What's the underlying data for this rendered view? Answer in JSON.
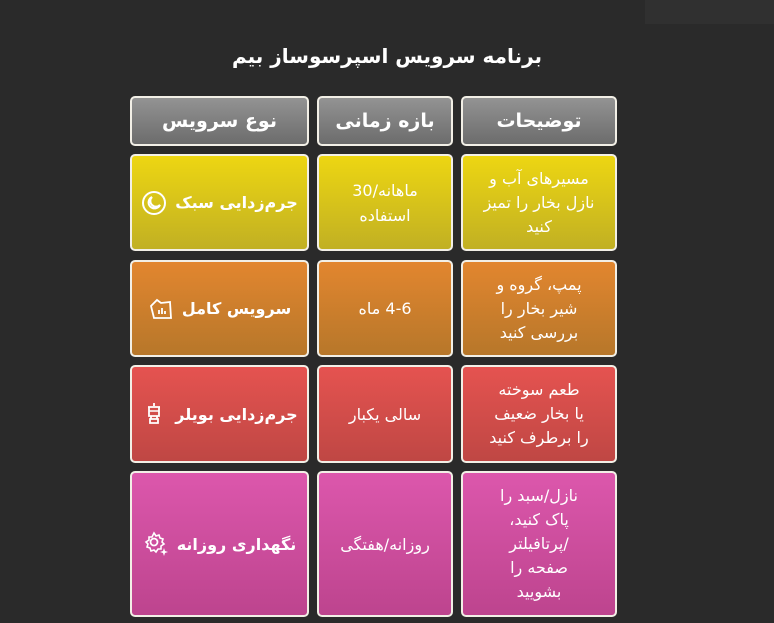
{
  "title": "برنامه سرویس اسپرسوساز بیم",
  "headers": {
    "type": "نوع سرویس",
    "interval": "بازه  زمانی",
    "description": "توضیحات"
  },
  "rows": [
    {
      "type": "جرم‌زدایی سبک",
      "icon": "moon-icon",
      "interval": "ماهانه/30\nاستفاده",
      "description": "مسیرهای آب و\nنازل بخار را تمیز\nکنید",
      "color": "#e0cb15"
    },
    {
      "type": "سرویس کامل",
      "icon": "chart-box-icon",
      "interval": "4-6 ماه",
      "description": "پمپ، گروه و\nشیر بخار را\nبررسی کنید",
      "color": "#d8822e"
    },
    {
      "type": "جرم‌زدایی بویلر",
      "icon": "boiler-icon",
      "interval": "سالی یکبار",
      "description": "طعم سوخته\nیا بخار ضعیف\nرا برطرف کنید",
      "color": "#dd4f4c"
    },
    {
      "type": "نگهداری روزانه",
      "icon": "gear-sparkle-icon",
      "interval": "روزانه/هفتگی",
      "description": "نازل/سبد را\nپاک کنید،\n/پرتافیلتر\nصفحه را\nبشویید",
      "color": "#d254a3"
    }
  ]
}
